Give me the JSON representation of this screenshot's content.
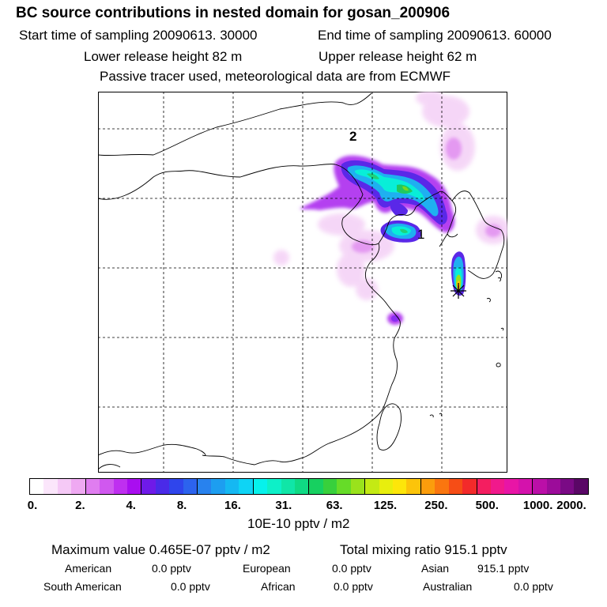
{
  "header": {
    "title": "BC  source contributions in nested domain for gosan_200906",
    "start_time": "Start time of sampling 20090613. 30000",
    "end_time": "End time of sampling 20090613. 60000",
    "lower_height": "Lower release height   82 m",
    "upper_height": "Upper release height   62 m",
    "tracer_note": "Passive tracer used, meteorological data are from ECMWF"
  },
  "map": {
    "labels": [
      {
        "text": "2"
      },
      {
        "text": "1"
      }
    ]
  },
  "colorbar": {
    "ticks": [
      "0.",
      "2.",
      "4.",
      "8.",
      "16.",
      "31.",
      "63.",
      "125.",
      "250.",
      "500.",
      "1000.",
      "2000."
    ],
    "colors": [
      "#ffffff",
      "#fbe6fb",
      "#f5c9f6",
      "#efa9f2",
      "#e07df0",
      "#d058ef",
      "#bf2ff0",
      "#a90ef0",
      "#6f1ae8",
      "#4a2ae8",
      "#2f45ec",
      "#2c63ee",
      "#2882ee",
      "#1d9ef0",
      "#15b8f2",
      "#0ed4f5",
      "#06f2ec",
      "#0df0c8",
      "#10e6a7",
      "#0fda84",
      "#17d060",
      "#38d03c",
      "#66dc28",
      "#9ae21c",
      "#c4ea14",
      "#e8ee0d",
      "#fde60a",
      "#fcc40a",
      "#fb9d0c",
      "#fa760f",
      "#f64d16",
      "#f32a2a",
      "#f41e60",
      "#f1198c",
      "#e815a6",
      "#d412ac",
      "#bb0fa8",
      "#9c0c9a",
      "#7a0a85",
      "#5a0766"
    ],
    "unit_label": "10E-10 pptv / m2"
  },
  "stats": {
    "max_value": "Maximum value  0.465E-07 pptv / m2",
    "total_mixing": "Total mixing ratio      915.1 pptv",
    "row1": [
      {
        "label": "American",
        "value": "0.0 pptv"
      },
      {
        "label": "European",
        "value": "0.0 pptv"
      },
      {
        "label": "Asian",
        "value": "915.1 pptv"
      }
    ],
    "row2": [
      {
        "label": "South American",
        "value": "0.0 pptv"
      },
      {
        "label": "African",
        "value": "0.0 pptv"
      },
      {
        "label": "Australian",
        "value": "0.0 pptv"
      }
    ]
  }
}
